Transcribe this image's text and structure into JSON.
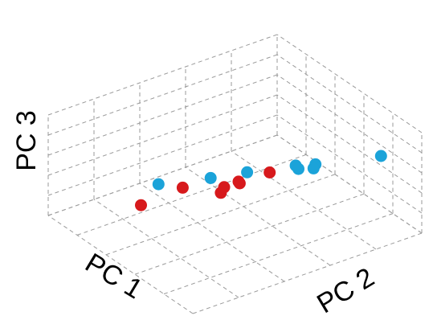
{
  "chart_data": {
    "type": "scatter",
    "title": "",
    "projection": "3d",
    "grid": true,
    "legend": "none",
    "axes": {
      "x": {
        "label": "PC 1",
        "lim": [
          0,
          1
        ]
      },
      "y": {
        "label": "PC 2",
        "lim": [
          0,
          1
        ]
      },
      "z": {
        "label": "PC 3",
        "lim": [
          0,
          1
        ]
      }
    },
    "series": [
      {
        "color": "#d7191c",
        "points": [
          {
            "x": 0.1,
            "y": 0.2,
            "z": 1.0
          },
          {
            "x": 0.26,
            "y": 0.5,
            "z": 0.75
          },
          {
            "x": 0.38,
            "y": 0.44,
            "z": 0.59
          },
          {
            "x": 0.36,
            "y": 0.35,
            "z": 0.57
          },
          {
            "x": 0.42,
            "y": 0.47,
            "z": 0.51
          },
          {
            "x": 0.58,
            "y": 0.14,
            "z": 0.4
          },
          {
            "x": 0.64,
            "y": 0.36,
            "z": 0.34
          }
        ]
      },
      {
        "color": "#1ba3d9",
        "points": [
          {
            "x": 0.25,
            "y": 0.98,
            "z": 0.54
          },
          {
            "x": 0.4,
            "y": 0.78,
            "z": 0.43
          },
          {
            "x": 0.45,
            "y": 0.82,
            "z": 0.39
          },
          {
            "x": 0.52,
            "y": 0.79,
            "z": 0.3
          },
          {
            "x": 0.7,
            "y": 0.52,
            "z": 0.25
          },
          {
            "x": 0.65,
            "y": 0.86,
            "z": 0.15
          },
          {
            "x": 0.78,
            "y": 0.73,
            "z": 0.06
          },
          {
            "x": 0.95,
            "y": 0.45,
            "z": 0.0
          }
        ]
      }
    ]
  }
}
